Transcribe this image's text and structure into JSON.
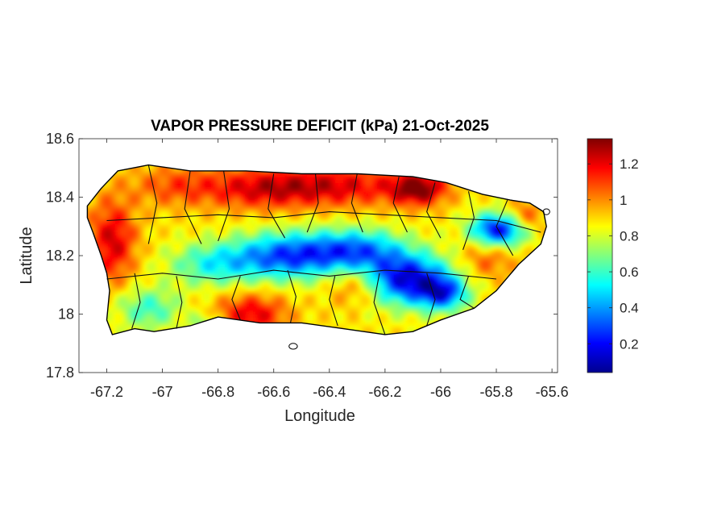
{
  "figure": {
    "title": "VAPOR PRESSURE DEFICIT (kPa) 21-Oct-2025",
    "xlabel": "Longitude",
    "ylabel": "Latitude"
  },
  "chart_data": {
    "type": "heatmap",
    "title": "VAPOR PRESSURE DEFICIT (kPa) 21-Oct-2025",
    "xlabel": "Longitude",
    "ylabel": "Latitude",
    "xlim": [
      -67.3,
      -65.58
    ],
    "ylim": [
      17.8,
      18.6
    ],
    "xticks": [
      -67.2,
      -67,
      -66.8,
      -66.6,
      -66.4,
      -66.2,
      -66,
      -65.8,
      -65.6
    ],
    "xtick_labels": [
      "-67.2",
      "-67",
      "-66.8",
      "-66.6",
      "-66.4",
      "-66.2",
      "-66",
      "-65.8",
      "-65.6"
    ],
    "yticks": [
      17.8,
      18,
      18.2,
      18.4,
      18.6
    ],
    "ytick_labels": [
      "17.8",
      "18",
      "18.2",
      "18.4",
      "18.6"
    ],
    "colorbar": {
      "colormap": "jet",
      "range": [
        0.04,
        1.34
      ],
      "ticks": [
        0.2,
        0.4,
        0.6,
        0.8,
        1,
        1.2
      ],
      "tick_labels": [
        "0.2",
        "0.4",
        "0.6",
        "0.8",
        "1",
        "1.2"
      ]
    },
    "grid": false,
    "outline": [
      [
        -67.27,
        18.37
      ],
      [
        -67.22,
        18.43
      ],
      [
        -67.16,
        18.49
      ],
      [
        -67.05,
        18.51
      ],
      [
        -66.9,
        18.49
      ],
      [
        -66.7,
        18.49
      ],
      [
        -66.5,
        18.48
      ],
      [
        -66.3,
        18.48
      ],
      [
        -66.1,
        18.47
      ],
      [
        -65.98,
        18.45
      ],
      [
        -65.85,
        18.41
      ],
      [
        -65.75,
        18.39
      ],
      [
        -65.68,
        18.38
      ],
      [
        -65.63,
        18.35
      ],
      [
        -65.62,
        18.3
      ],
      [
        -65.64,
        18.24
      ],
      [
        -65.72,
        18.17
      ],
      [
        -65.8,
        18.08
      ],
      [
        -65.88,
        18.02
      ],
      [
        -66.0,
        17.98
      ],
      [
        -66.1,
        17.94
      ],
      [
        -66.2,
        17.93
      ],
      [
        -66.35,
        17.95
      ],
      [
        -66.5,
        17.97
      ],
      [
        -66.65,
        17.97
      ],
      [
        -66.8,
        17.99
      ],
      [
        -66.9,
        17.96
      ],
      [
        -67.03,
        17.94
      ],
      [
        -67.1,
        17.95
      ],
      [
        -67.18,
        17.93
      ],
      [
        -67.2,
        17.98
      ],
      [
        -67.19,
        18.08
      ],
      [
        -67.2,
        18.14
      ],
      [
        -67.22,
        18.2
      ],
      [
        -67.25,
        18.28
      ],
      [
        -67.27,
        18.33
      ]
    ],
    "islets": [
      {
        "center": [
          -66.53,
          17.89
        ],
        "radius": [
          0.015,
          0.01
        ]
      },
      {
        "center": [
          -65.62,
          18.35
        ],
        "radius": [
          0.012,
          0.01
        ]
      }
    ],
    "field": {
      "background_value": 0.88,
      "anomalies": [
        {
          "lon": -66.37,
          "lat": 18.44,
          "sx": 0.18,
          "sy": 0.05,
          "dv": 0.32
        },
        {
          "lon": -66.65,
          "lat": 18.43,
          "sx": 0.14,
          "sy": 0.05,
          "dv": 0.28
        },
        {
          "lon": -66.95,
          "lat": 18.44,
          "sx": 0.12,
          "sy": 0.05,
          "dv": 0.2
        },
        {
          "lon": -66.08,
          "lat": 18.43,
          "sx": 0.07,
          "sy": 0.04,
          "dv": 0.44
        },
        {
          "lon": -67.18,
          "lat": 18.25,
          "sx": 0.06,
          "sy": 0.1,
          "dv": 0.35
        },
        {
          "lon": -66.68,
          "lat": 18.0,
          "sx": 0.09,
          "sy": 0.05,
          "dv": 0.33
        },
        {
          "lon": -66.3,
          "lat": 18.1,
          "sx": 0.07,
          "sy": 0.05,
          "dv": 0.22
        },
        {
          "lon": -65.7,
          "lat": 18.33,
          "sx": 0.05,
          "sy": 0.04,
          "dv": 0.25
        },
        {
          "lon": -65.83,
          "lat": 18.19,
          "sx": 0.07,
          "sy": 0.05,
          "dv": 0.18
        },
        {
          "lon": -66.55,
          "lat": 18.2,
          "sx": 0.14,
          "sy": 0.055,
          "dv": -0.58
        },
        {
          "lon": -66.3,
          "lat": 18.22,
          "sx": 0.12,
          "sy": 0.05,
          "dv": -0.48
        },
        {
          "lon": -66.12,
          "lat": 18.12,
          "sx": 0.11,
          "sy": 0.06,
          "dv": -0.72
        },
        {
          "lon": -65.99,
          "lat": 18.07,
          "sx": 0.06,
          "sy": 0.04,
          "dv": -0.5
        },
        {
          "lon": -65.79,
          "lat": 18.29,
          "sx": 0.07,
          "sy": 0.04,
          "dv": -0.72
        },
        {
          "lon": -66.82,
          "lat": 18.17,
          "sx": 0.11,
          "sy": 0.05,
          "dv": -0.3
        },
        {
          "lon": -67.05,
          "lat": 18.02,
          "sx": 0.08,
          "sy": 0.05,
          "dv": -0.28
        },
        {
          "lon": -66.84,
          "lat": 17.96,
          "sx": 0.04,
          "sy": 0.03,
          "dv": -0.25
        }
      ]
    },
    "municipal_boundary_lines": [
      [
        [
          -67.05,
          18.51
        ],
        [
          -67.02,
          18.38
        ],
        [
          -67.05,
          18.24
        ]
      ],
      [
        [
          -66.9,
          18.49
        ],
        [
          -66.92,
          18.36
        ],
        [
          -66.86,
          18.24
        ]
      ],
      [
        [
          -66.78,
          18.49
        ],
        [
          -66.76,
          18.36
        ],
        [
          -66.8,
          18.25
        ]
      ],
      [
        [
          -66.6,
          18.48
        ],
        [
          -66.62,
          18.36
        ],
        [
          -66.56,
          18.26
        ]
      ],
      [
        [
          -66.45,
          18.48
        ],
        [
          -66.44,
          18.38
        ],
        [
          -66.48,
          18.28
        ]
      ],
      [
        [
          -66.3,
          18.48
        ],
        [
          -66.32,
          18.38
        ],
        [
          -66.28,
          18.28
        ]
      ],
      [
        [
          -66.15,
          18.47
        ],
        [
          -66.17,
          18.38
        ],
        [
          -66.12,
          18.28
        ]
      ],
      [
        [
          -66.02,
          18.45
        ],
        [
          -66.05,
          18.35
        ],
        [
          -66.0,
          18.26
        ]
      ],
      [
        [
          -65.9,
          18.42
        ],
        [
          -65.88,
          18.33
        ],
        [
          -65.92,
          18.22
        ]
      ],
      [
        [
          -65.76,
          18.39
        ],
        [
          -65.8,
          18.3
        ],
        [
          -65.74,
          18.2
        ]
      ],
      [
        [
          -67.2,
          18.32
        ],
        [
          -67.0,
          18.33
        ],
        [
          -66.8,
          18.34
        ],
        [
          -66.6,
          18.33
        ],
        [
          -66.4,
          18.35
        ],
        [
          -66.2,
          18.34
        ],
        [
          -66.0,
          18.33
        ],
        [
          -65.8,
          18.32
        ],
        [
          -65.64,
          18.28
        ]
      ],
      [
        [
          -67.2,
          18.12
        ],
        [
          -67.0,
          18.14
        ],
        [
          -66.8,
          18.12
        ],
        [
          -66.6,
          18.15
        ],
        [
          -66.4,
          18.13
        ],
        [
          -66.2,
          18.15
        ],
        [
          -66.0,
          18.14
        ],
        [
          -65.8,
          18.12
        ]
      ],
      [
        [
          -67.1,
          18.14
        ],
        [
          -67.08,
          18.04
        ],
        [
          -67.11,
          17.95
        ]
      ],
      [
        [
          -66.95,
          18.13
        ],
        [
          -66.93,
          18.04
        ],
        [
          -66.95,
          17.95
        ]
      ],
      [
        [
          -66.72,
          18.13
        ],
        [
          -66.75,
          18.05
        ],
        [
          -66.72,
          17.98
        ]
      ],
      [
        [
          -66.55,
          18.15
        ],
        [
          -66.52,
          18.06
        ],
        [
          -66.54,
          17.97
        ]
      ],
      [
        [
          -66.38,
          18.13
        ],
        [
          -66.4,
          18.05
        ],
        [
          -66.37,
          17.96
        ]
      ],
      [
        [
          -66.22,
          18.14
        ],
        [
          -66.24,
          18.04
        ],
        [
          -66.2,
          17.93
        ]
      ],
      [
        [
          -66.05,
          18.14
        ],
        [
          -66.02,
          18.05
        ],
        [
          -66.05,
          17.96
        ]
      ],
      [
        [
          -65.9,
          18.13
        ],
        [
          -65.93,
          18.05
        ],
        [
          -65.88,
          18.02
        ]
      ]
    ]
  }
}
